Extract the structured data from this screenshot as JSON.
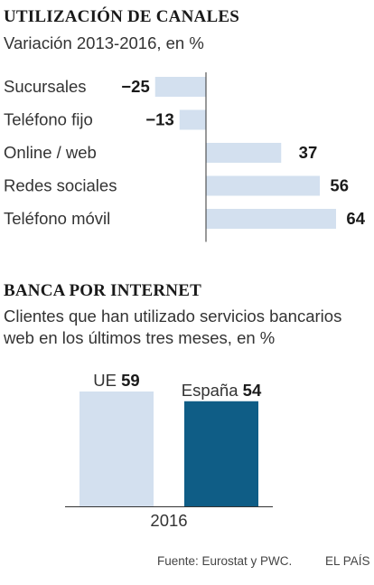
{
  "chart_data": [
    {
      "type": "bar",
      "orientation": "horizontal",
      "title": "UTILIZACIÓN DE CANALES",
      "subtitle": "Variación 2013-2016, en %",
      "categories": [
        "Sucursales",
        "Teléfono fijo",
        "Online / web",
        "Redes sociales",
        "Teléfono móvil"
      ],
      "values": [
        -25,
        -13,
        37,
        56,
        64
      ],
      "value_labels": [
        "−25",
        "−13",
        "37",
        "56",
        "64"
      ],
      "xlim": [
        -30,
        70
      ],
      "grid": false,
      "bar_color": "#d3e0ef"
    },
    {
      "type": "bar",
      "title": "BANCA POR INTERNET",
      "subtitle": "Clientes que han utilizado servicios bancarios web en los últimos tres meses, en %",
      "xlabel": "2016",
      "categories": [
        "UE",
        "España"
      ],
      "values": [
        59,
        54
      ],
      "ylim": [
        0,
        65
      ],
      "colors": [
        "#d3e0ef",
        "#0f5d86"
      ],
      "grid": false
    }
  ],
  "footer": {
    "source": "Fuente: Eurostat y PWC.",
    "brand": "EL PAÍS"
  }
}
